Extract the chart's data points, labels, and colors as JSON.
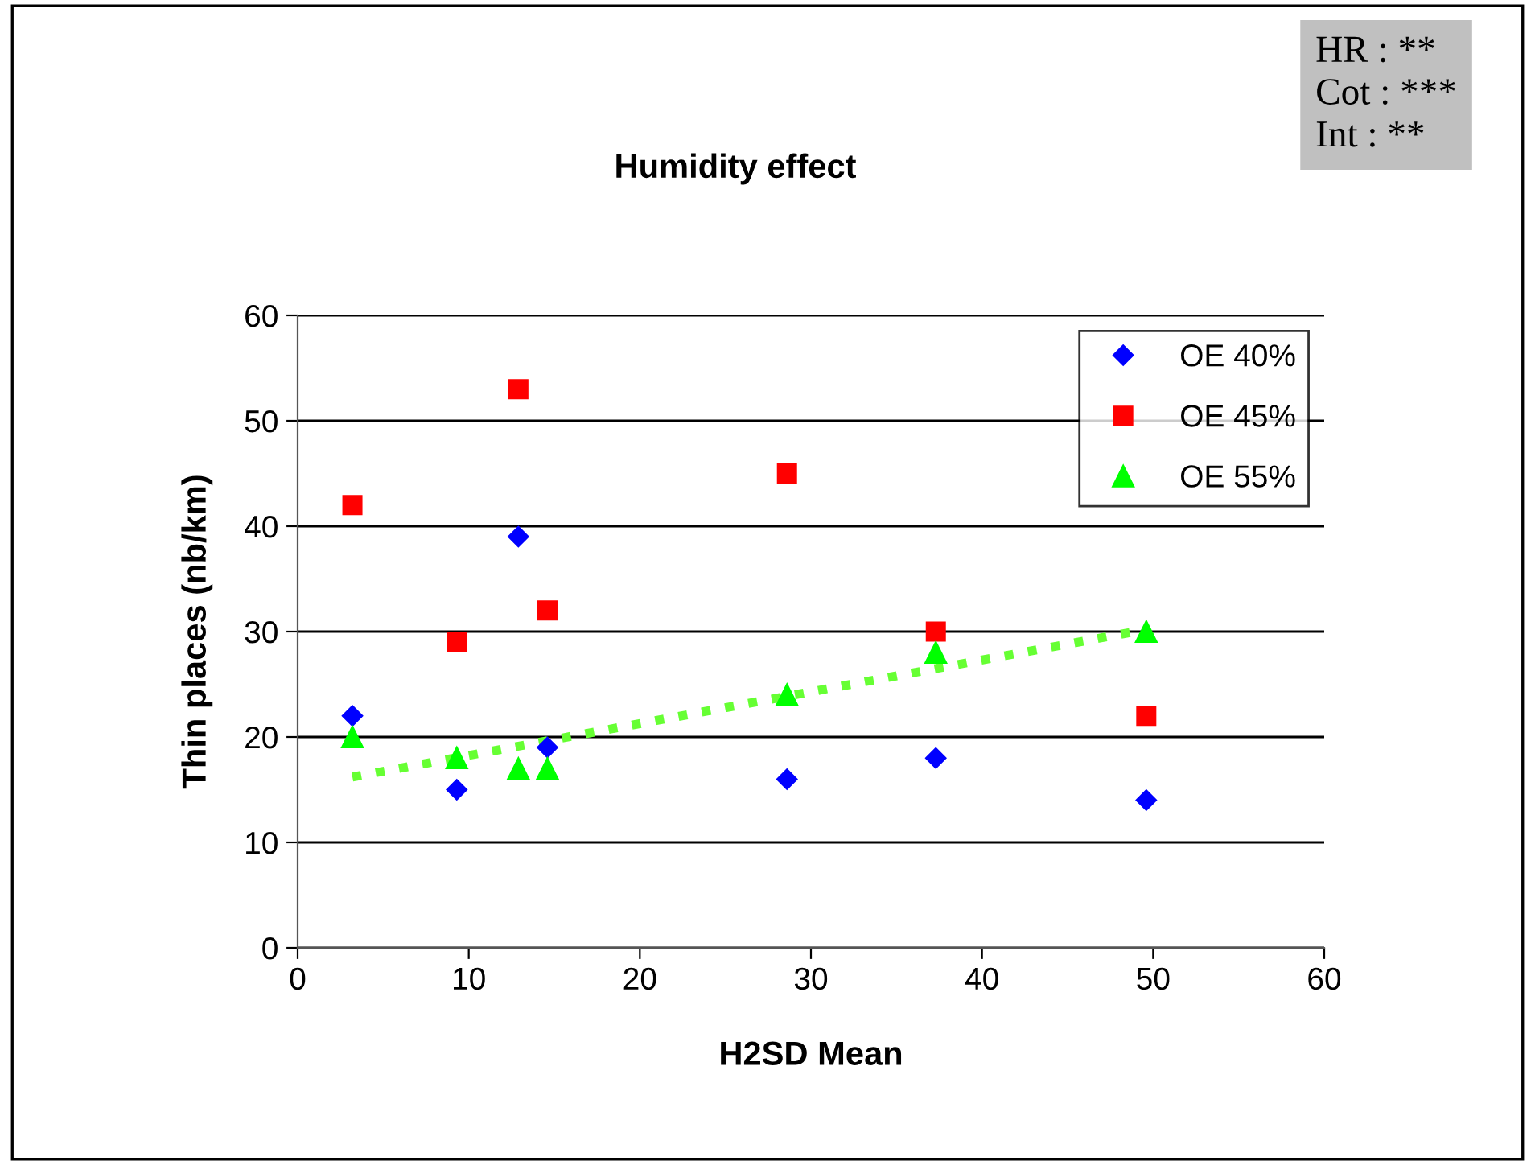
{
  "chart_data": {
    "type": "scatter",
    "title": "Humidity effect",
    "xlabel": "H2SD Mean",
    "ylabel": "Thin places (nb/km)",
    "x": [
      3.2,
      9.3,
      12.9,
      14.6,
      28.6,
      37.3,
      49.6
    ],
    "series": [
      {
        "name": "OE 40%",
        "color": "#0000ff",
        "marker": "diamond",
        "values": [
          22,
          15,
          39,
          19,
          16,
          18,
          14
        ]
      },
      {
        "name": "OE 45%",
        "color": "#ff0000",
        "marker": "square",
        "values": [
          42,
          29,
          53,
          32,
          45,
          30,
          22
        ]
      },
      {
        "name": "OE 55%",
        "color": "#00ff00",
        "marker": "triangle",
        "values": [
          20,
          18,
          17,
          17,
          24,
          28,
          30
        ]
      },
      {
        "type": "line",
        "color": "#66ff33",
        "line_style": "dotted",
        "marker": "none",
        "x": [
          3.2,
          49.6
        ],
        "values": [
          16.2,
          30.2
        ]
      }
    ],
    "xlim": [
      0,
      60
    ],
    "ylim": [
      0,
      60
    ],
    "xticks": [
      0,
      10,
      20,
      30,
      40,
      50,
      60
    ],
    "yticks": [
      0,
      10,
      20,
      30,
      40,
      50,
      60
    ],
    "grid": "y",
    "legend": "top right",
    "annotations": [
      "HR : **\nCot : ***\nInt : **"
    ]
  }
}
